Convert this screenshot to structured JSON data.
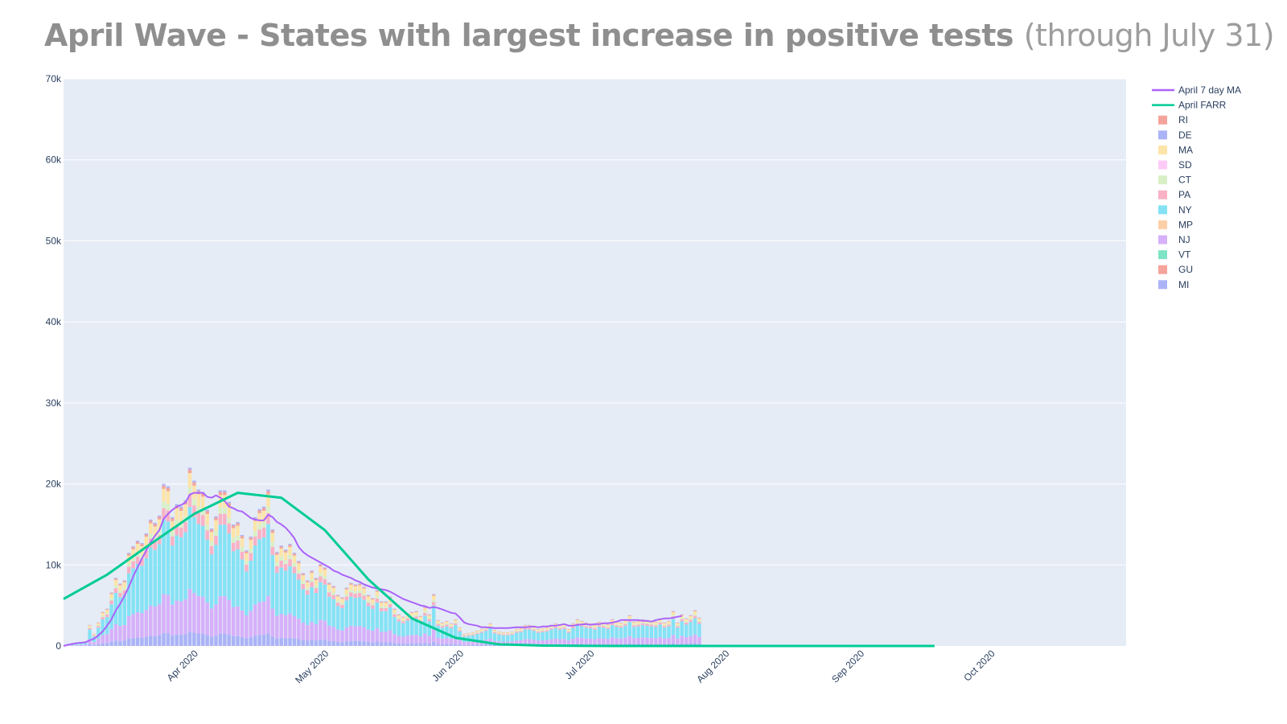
{
  "title": {
    "main": "April Wave - States with largest increase in positive tests",
    "sub": "(through July 31)"
  },
  "colors": {
    "plot_bg": "#e5ecf6",
    "grid": "#ffffff",
    "ma_line": "#ab63fa",
    "farr_line": "#00cc96"
  },
  "chart_data": {
    "type": "bar",
    "barmode": "stack",
    "x_axis": {
      "type": "date",
      "range": [
        "2020-03-01",
        "2020-10-31"
      ],
      "tick_dates": [
        "2020-04-01",
        "2020-05-01",
        "2020-06-01",
        "2020-07-01",
        "2020-08-01",
        "2020-09-01",
        "2020-10-01"
      ],
      "tick_labels": [
        "Apr 2020",
        "May 2020",
        "Jun 2020",
        "Jul 2020",
        "Aug 2020",
        "Sep 2020",
        "Oct 2020"
      ]
    },
    "y_axis": {
      "range": [
        0,
        70000
      ],
      "ticks": [
        0,
        10000,
        20000,
        30000,
        40000,
        50000,
        60000,
        70000
      ],
      "tick_labels": [
        "0",
        "10k",
        "20k",
        "30k",
        "40k",
        "50k",
        "60k",
        "70k"
      ]
    },
    "grid": true,
    "legend": {
      "placement": "right",
      "entries": [
        {
          "name": "April 7 day MA",
          "kind": "line",
          "color": "#ab63fa"
        },
        {
          "name": "April FARR",
          "kind": "line",
          "color": "#00cc96"
        },
        {
          "name": "RI",
          "kind": "bar",
          "color": "#f4a49b"
        },
        {
          "name": "DE",
          "kind": "bar",
          "color": "#abb3f7"
        },
        {
          "name": "MA",
          "kind": "bar",
          "color": "#fde4a8"
        },
        {
          "name": "SD",
          "kind": "bar",
          "color": "#fecbf7"
        },
        {
          "name": "CT",
          "kind": "bar",
          "color": "#d9f0c6"
        },
        {
          "name": "PA",
          "kind": "bar",
          "color": "#f9b1c6"
        },
        {
          "name": "NY",
          "kind": "bar",
          "color": "#85e2f5"
        },
        {
          "name": "MP",
          "kind": "bar",
          "color": "#fdcfa9"
        },
        {
          "name": "NJ",
          "kind": "bar",
          "color": "#d6b0fa"
        },
        {
          "name": "VT",
          "kind": "bar",
          "color": "#7fe3c5"
        },
        {
          "name": "GU",
          "kind": "bar",
          "color": "#f4a49b"
        },
        {
          "name": "MI",
          "kind": "bar",
          "color": "#abb3f7"
        }
      ]
    },
    "bar_start_date": "2020-03-01",
    "stack_order": [
      "MI",
      "NJ",
      "NY",
      "PA",
      "CT",
      "MA",
      "RI",
      "DE"
    ],
    "bar_totals": [
      0,
      200,
      300,
      400,
      500,
      600,
      2600,
      1500,
      2900,
      4200,
      4600,
      6600,
      8400,
      7700,
      8100,
      11500,
      12300,
      13000,
      12700,
      13900,
      15600,
      15200,
      16100,
      20000,
      19700,
      15900,
      17500,
      17200,
      18000,
      22000,
      20400,
      19300,
      19000,
      16800,
      14500,
      16000,
      19200,
      19200,
      17800,
      15000,
      15300,
      13700,
      11800,
      13500,
      15900,
      16900,
      17200,
      19300,
      14400,
      11600,
      12400,
      11900,
      12600,
      11500,
      10500,
      9000,
      8100,
      9300,
      8400,
      10100,
      9700,
      7800,
      7400,
      6300,
      6000,
      7200,
      7800,
      7600,
      7700,
      7300,
      6300,
      5900,
      6900,
      5500,
      5500,
      6100,
      4600,
      3900,
      3600,
      4000,
      4200,
      4300,
      3700,
      4800,
      3900,
      6400,
      3200,
      2900,
      3100,
      2800,
      3300,
      2300,
      1500,
      1600,
      1700,
      1900,
      2100,
      2400,
      2800,
      2000,
      1800,
      1700,
      1700,
      1800,
      2100,
      2200,
      2600,
      2600,
      2400,
      2100,
      2200,
      2300,
      2600,
      2800,
      2600,
      2700,
      2100,
      2800,
      3300,
      3100,
      2900,
      2800,
      2600,
      3000,
      2900,
      2700,
      3300,
      3000,
      2900,
      3200,
      3800,
      3000,
      3100,
      3300,
      3200,
      3100,
      3000,
      3400,
      2900,
      3100,
      4300,
      2900,
      3900,
      3400,
      3800,
      4400,
      3500
    ],
    "series": [
      {
        "name": "April 7 day MA",
        "type": "line",
        "start_date": "2020-03-01",
        "step_days": 1,
        "values": [
          0,
          150,
          250,
          350,
          400,
          450,
          700,
          900,
          1300,
          1800,
          2500,
          3300,
          4400,
          5200,
          6200,
          7300,
          8600,
          9700,
          10800,
          11800,
          12800,
          13600,
          14300,
          15700,
          16300,
          16800,
          17200,
          17400,
          17700,
          18700,
          18900,
          18900,
          18900,
          18400,
          18300,
          18600,
          18300,
          17900,
          17200,
          17000,
          16700,
          16600,
          16200,
          15800,
          15600,
          15500,
          15500,
          16200,
          15900,
          15300,
          15000,
          14600,
          14000,
          13300,
          12200,
          11600,
          11200,
          10900,
          10600,
          10300,
          10000,
          9700,
          9300,
          9100,
          8800,
          8600,
          8400,
          8100,
          7900,
          7600,
          7400,
          7200,
          7100,
          7000,
          6900,
          6700,
          6400,
          6100,
          5800,
          5600,
          5400,
          5200,
          5000,
          4900,
          4700,
          4800,
          4700,
          4500,
          4300,
          4100,
          4000,
          3500,
          2900,
          2700,
          2600,
          2500,
          2300,
          2300,
          2250,
          2200,
          2200,
          2200,
          2200,
          2250,
          2300,
          2300,
          2300,
          2350,
          2400,
          2300,
          2400,
          2400,
          2500,
          2500,
          2600,
          2700,
          2500,
          2500,
          2600,
          2650,
          2700,
          2600,
          2700,
          2700,
          2800,
          2800,
          2900,
          3000,
          3200,
          3200,
          3200,
          3200,
          3200,
          3100,
          3100,
          3000,
          3200,
          3300,
          3400,
          3400,
          3500,
          3600,
          3700
        ]
      },
      {
        "name": "April FARR",
        "type": "line",
        "start_date": "2020-03-01",
        "step_days": 10,
        "values": [
          5800,
          8800,
          12600,
          16300,
          18900,
          18300,
          14300,
          8200,
          3400,
          1000,
          200,
          50,
          10,
          0,
          0,
          0,
          0,
          0,
          0,
          0,
          0
        ]
      }
    ]
  }
}
